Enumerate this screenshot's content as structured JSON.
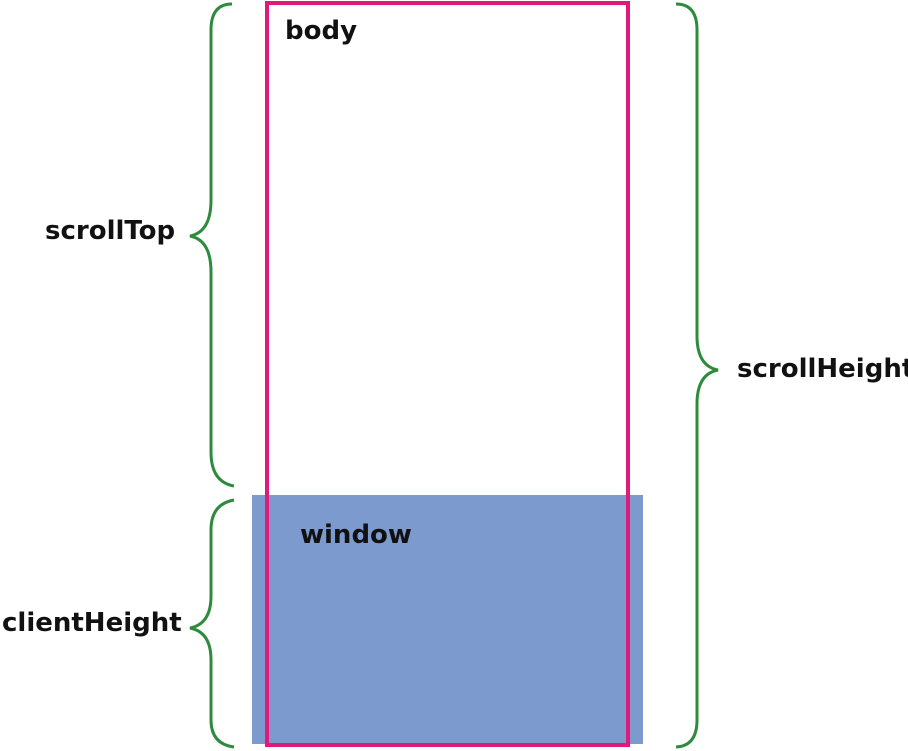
{
  "diagram": {
    "labels": {
      "body": "body",
      "window": "window",
      "scroll_top": "scrollTop",
      "client_height": "clientHeight",
      "scroll_height": "scrollHeight"
    },
    "colors": {
      "body_outline": "#E0197D",
      "window_fill": "#7D9ACF",
      "brace": "#2E8B3E",
      "text": "#111111",
      "background": "#FFFFFF"
    }
  }
}
